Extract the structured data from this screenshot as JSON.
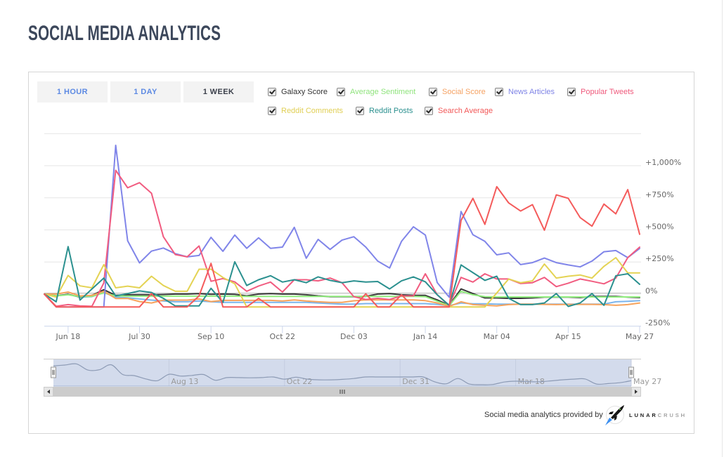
{
  "page": {
    "title": "SOCIAL MEDIA ANALYTICS"
  },
  "range_buttons": [
    {
      "label": "1 HOUR",
      "selected": false
    },
    {
      "label": "1 DAY",
      "selected": false
    },
    {
      "label": "1 WEEK",
      "selected": true
    }
  ],
  "legend": [
    {
      "label": "Galaxy Score",
      "color": "#333333",
      "checked": true
    },
    {
      "label": "Average Sentiment",
      "color": "#8fe37c",
      "checked": true
    },
    {
      "label": "Social Score",
      "color": "#f5a263",
      "checked": true
    },
    {
      "label": "News Articles",
      "color": "#7f84e6",
      "checked": true
    },
    {
      "label": "Popular Tweets",
      "color": "#ef5a7c",
      "checked": true
    },
    {
      "label": "Reddit Comments",
      "color": "#e0cf55",
      "checked": true
    },
    {
      "label": "Reddit Posts",
      "color": "#2b908f",
      "checked": true
    },
    {
      "label": "Search Average",
      "color": "#f25858",
      "checked": true
    }
  ],
  "chart_data": {
    "type": "line",
    "title": "",
    "xlabel": "",
    "ylabel": "",
    "x_unit": "weekly points (index 0-50)",
    "ylim": [
      -250,
      1250
    ],
    "grid": true,
    "legend_position": "top",
    "y_gridlines": [
      -250,
      0,
      250,
      500,
      750,
      1000,
      1250
    ],
    "y_tick_labels": [
      {
        "value": -250,
        "label": "-250%"
      },
      {
        "value": 0,
        "label": "0%"
      },
      {
        "value": 250,
        "label": "+250%"
      },
      {
        "value": 500,
        "label": "+500%"
      },
      {
        "value": 750,
        "label": "+750%"
      },
      {
        "value": 1000,
        "label": "+1,000%"
      }
    ],
    "x_ticks": [
      {
        "label": "Jun 18",
        "index": 2
      },
      {
        "label": "Jul 30",
        "index": 8
      },
      {
        "label": "Sep 10",
        "index": 14
      },
      {
        "label": "Oct 22",
        "index": 20
      },
      {
        "label": "Dec 03",
        "index": 26
      },
      {
        "label": "Jan 14",
        "index": 32
      },
      {
        "label": "Mar 04",
        "index": 38
      },
      {
        "label": "Apr 15",
        "index": 44
      },
      {
        "label": "May 27",
        "index": 50
      }
    ],
    "series": [
      {
        "name": "",
        "in_legend": false,
        "color": "#7cb5ec",
        "values": [
          0,
          -14,
          -2,
          -23,
          -20,
          12,
          -23,
          -29,
          -38,
          -47,
          -54,
          -60,
          -60,
          -54,
          -60,
          -65,
          -65,
          -65,
          -65,
          -65,
          -65,
          -65,
          -65,
          -69,
          -74,
          -78,
          -78,
          -74,
          -74,
          -74,
          -74,
          -74,
          -74,
          -80,
          -90,
          -69,
          -76,
          -76,
          -78,
          -78,
          -78,
          -78,
          -78,
          -78,
          -78,
          -78,
          -78,
          -78,
          -60,
          -56,
          -51
        ]
      },
      {
        "name": "Galaxy Score",
        "in_legend": true,
        "color": "#383838",
        "values": [
          0,
          -14,
          -2,
          -23,
          -10,
          34,
          -10,
          -5,
          -5,
          -5,
          -3,
          0,
          0,
          4,
          -2,
          0,
          -2,
          -14,
          0,
          4,
          0,
          0,
          -5,
          -14,
          -20,
          -20,
          -20,
          -18,
          0,
          4,
          -5,
          -9,
          -10,
          -45,
          -87,
          40,
          4,
          -30,
          -30,
          -33,
          -33,
          -30,
          -24,
          -24,
          -24,
          -27,
          -18,
          -18,
          -18,
          -24,
          -27
        ]
      },
      {
        "name": "Average Sentiment",
        "in_legend": true,
        "color": "#90ed7d",
        "values": [
          0,
          -14,
          -5,
          -20,
          -18,
          10,
          -14,
          -16,
          -16,
          -16,
          -16,
          -16,
          -16,
          -16,
          -16,
          -16,
          -16,
          -18,
          -18,
          -18,
          -18,
          -18,
          -18,
          -18,
          -18,
          -18,
          -18,
          -18,
          -18,
          -18,
          -18,
          -18,
          -20,
          -55,
          -90,
          22,
          -5,
          -20,
          -22,
          -22,
          -22,
          -22,
          -22,
          -22,
          -22,
          -22,
          -22,
          -22,
          -22,
          -22,
          -22
        ]
      },
      {
        "name": "Social Score",
        "in_legend": true,
        "color": "#f7a35c",
        "values": [
          0,
          0,
          16,
          -14,
          -10,
          22,
          -34,
          -34,
          -58,
          -69,
          -47,
          -47,
          -47,
          -38,
          -58,
          -49,
          -49,
          -49,
          -49,
          -49,
          -54,
          -45,
          -54,
          -60,
          -65,
          -65,
          -52,
          -45,
          -45,
          -45,
          -45,
          -45,
          -51,
          -69,
          -96,
          -60,
          -82,
          -87,
          -92,
          -82,
          -78,
          -78,
          -80,
          -82,
          -80,
          -80,
          -80,
          -82,
          -87,
          -82,
          -69
        ]
      },
      {
        "name": "News Articles",
        "in_legend": true,
        "color": "#8085e9",
        "values": [
          0,
          -100,
          -100,
          -100,
          -100,
          -100,
          1159,
          415,
          243,
          335,
          359,
          315,
          290,
          301,
          442,
          333,
          460,
          357,
          438,
          357,
          366,
          520,
          279,
          426,
          348,
          420,
          447,
          366,
          257,
          203,
          411,
          524,
          460,
          90,
          -24,
          643,
          462,
          411,
          306,
          321,
          230,
          245,
          281,
          245,
          227,
          212,
          257,
          330,
          339,
          284,
          355
        ]
      },
      {
        "name": "Popular Tweets",
        "in_legend": true,
        "color": "#f15c80",
        "values": [
          0,
          -95,
          -82,
          -92,
          -95,
          87,
          964,
          828,
          868,
          786,
          447,
          308,
          290,
          375,
          100,
          121,
          95,
          22,
          63,
          94,
          16,
          112,
          112,
          103,
          125,
          89,
          -20,
          -42,
          -33,
          -42,
          -14,
          -14,
          158,
          -5,
          -90,
          130,
          94,
          158,
          118,
          118,
          82,
          89,
          130,
          58,
          85,
          118,
          100,
          80,
          125,
          284,
          366
        ]
      },
      {
        "name": "Reddit Comments",
        "in_legend": true,
        "color": "#e4d354",
        "values": [
          0,
          -23,
          145,
          64,
          49,
          230,
          49,
          62,
          49,
          139,
          67,
          22,
          22,
          194,
          194,
          130,
          80,
          -100,
          -100,
          -100,
          -100,
          -100,
          -100,
          -100,
          -100,
          -100,
          -100,
          -100,
          -100,
          -100,
          -100,
          -100,
          -100,
          -100,
          -100,
          -100,
          -100,
          -100,
          9,
          118,
          89,
          103,
          234,
          125,
          139,
          149,
          125,
          216,
          284,
          165,
          165
        ]
      },
      {
        "name": "Reddit Posts",
        "in_legend": true,
        "color": "#2b908f",
        "values": [
          0,
          -60,
          370,
          -47,
          40,
          125,
          -14,
          4,
          25,
          13,
          -33,
          -92,
          -92,
          -92,
          45,
          -65,
          252,
          67,
          112,
          143,
          94,
          112,
          89,
          134,
          107,
          89,
          103,
          94,
          98,
          40,
          103,
          134,
          96,
          -5,
          -87,
          227,
          167,
          107,
          139,
          -33,
          -82,
          -82,
          -69,
          4,
          -96,
          -69,
          4,
          -87,
          143,
          158,
          76
        ]
      },
      {
        "name": "Search Average",
        "in_legend": true,
        "color": "#f45b5b",
        "values": [
          0,
          -100,
          -100,
          -100,
          -100,
          -100,
          -100,
          -100,
          -100,
          4,
          -100,
          -100,
          -100,
          -14,
          239,
          -100,
          -100,
          -100,
          -33,
          -100,
          -100,
          -100,
          -100,
          -100,
          -100,
          -100,
          -100,
          2,
          -100,
          -100,
          -5,
          -100,
          -100,
          -100,
          -100,
          574,
          746,
          543,
          837,
          710,
          647,
          697,
          498,
          773,
          746,
          596,
          529,
          701,
          625,
          814,
          466
        ]
      }
    ]
  },
  "navigator": {
    "series_color": "#8d9bb5",
    "mask_color": "#d3dbec",
    "selected_range": {
      "from_index": 0,
      "to_index": 50
    },
    "values_normalized": [
      0.85,
      0.89,
      0.94,
      0.66,
      0.68,
      0.9,
      0.46,
      0.41,
      0.26,
      0.18,
      0.47,
      0.39,
      0.42,
      0.46,
      0.2,
      0.32,
      0.32,
      0.31,
      0.32,
      0.35,
      0.25,
      0.34,
      0.25,
      0.22,
      0.22,
      0.24,
      0.28,
      0.35,
      0.35,
      0.35,
      0.35,
      0.35,
      0.35,
      0.13,
      0.04,
      0.28,
      0.03,
      0.0,
      0.01,
      0.12,
      0.16,
      0.14,
      0.13,
      0.17,
      0.22,
      0.25,
      0.26,
      0.03,
      0.05,
      0.09,
      0.18
    ],
    "ticks": [
      {
        "label": "Aug 13",
        "index": 10
      },
      {
        "label": "Oct 22",
        "index": 20
      },
      {
        "label": "Dec 31",
        "index": 30
      },
      {
        "label": "Mar 18",
        "index": 40
      },
      {
        "label": "May 27",
        "index": 50
      }
    ]
  },
  "attribution": {
    "text": "Social media analytics provided by",
    "brand_part1": "LUNAR",
    "brand_part2": "CRUSH"
  }
}
